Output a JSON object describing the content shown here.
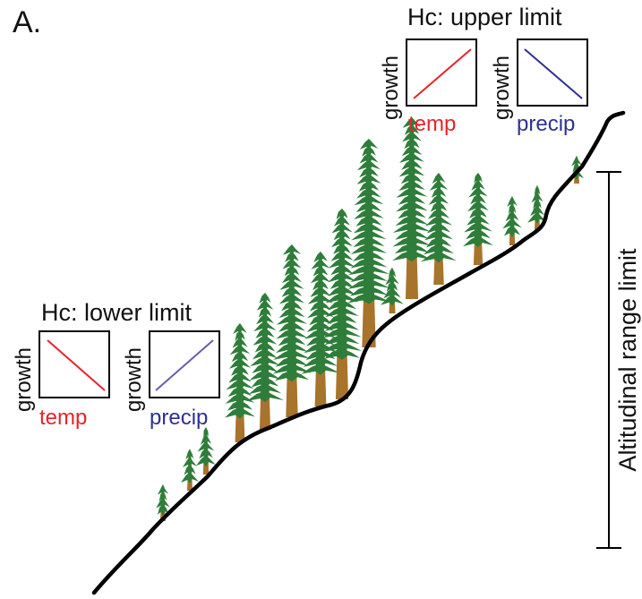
{
  "panel_label": "A.",
  "upper": {
    "title": "Hc: upper limit",
    "temp_plot": {
      "ylabel": "growth",
      "xlabel": "temp",
      "trend": "increasing",
      "color": "#e8232a"
    },
    "precip_plot": {
      "ylabel": "growth",
      "xlabel": "precip",
      "trend": "decreasing",
      "color": "#2e3192"
    }
  },
  "lower": {
    "title": "Hc: lower limit",
    "temp_plot": {
      "ylabel": "growth",
      "xlabel": "temp",
      "trend": "decreasing",
      "color": "#e8232a"
    },
    "precip_plot": {
      "ylabel": "growth",
      "xlabel": "precip",
      "trend": "increasing",
      "color": "#2e3192"
    }
  },
  "range_label": "Altitudinal range limit",
  "colors": {
    "foliage": "#2e7d3a",
    "trunk": "#a8732a",
    "slope": "#000000",
    "plot_frame": "#000000"
  }
}
